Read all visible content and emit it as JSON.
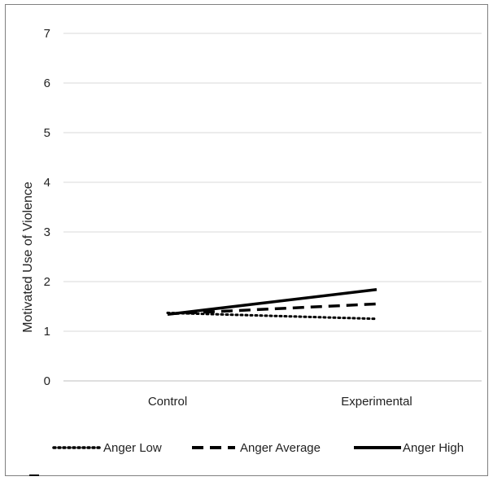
{
  "chart_data": {
    "type": "line",
    "ylabel": "Motivated Use of Violence",
    "xlabel": "",
    "ylim": [
      0,
      7
    ],
    "yticks": [
      0,
      1,
      2,
      3,
      4,
      5,
      6,
      7
    ],
    "grid": true,
    "legend_position": "bottom",
    "categories": [
      "Control",
      "Experimental"
    ],
    "series": [
      {
        "name": "Anger Low",
        "values": [
          1.37,
          1.25
        ],
        "style": "dotted"
      },
      {
        "name": "Anger Average",
        "values": [
          1.35,
          1.55
        ],
        "style": "dashed"
      },
      {
        "name": "Anger High",
        "values": [
          1.34,
          1.84
        ],
        "style": "solid"
      }
    ],
    "colors": {
      "line": "#000000",
      "grid": "#d9d9d9",
      "text": "#222222"
    }
  }
}
